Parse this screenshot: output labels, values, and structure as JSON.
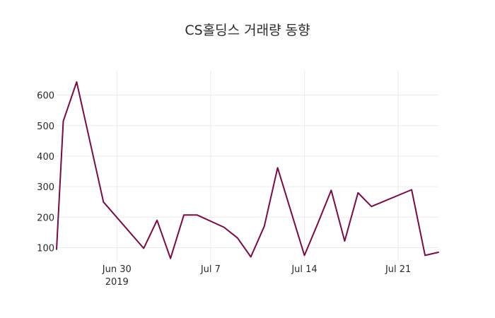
{
  "chart_data": {
    "type": "line",
    "title": "CS홀딩스 거래량 동향",
    "xlabel": "",
    "ylabel": "",
    "x_tick_labels": [
      {
        "date": "2019-06-30",
        "label": "Jun 30",
        "sublabel": "2019"
      },
      {
        "date": "2019-07-07",
        "label": "Jul 7",
        "sublabel": ""
      },
      {
        "date": "2019-07-14",
        "label": "Jul 14",
        "sublabel": ""
      },
      {
        "date": "2019-07-21",
        "label": "Jul 21",
        "sublabel": ""
      }
    ],
    "y_ticks": [
      100,
      200,
      300,
      400,
      500,
      600
    ],
    "xlim": [
      "2019-06-25T12:00:00",
      "2019-07-24"
    ],
    "ylim": [
      55,
      680
    ],
    "grid": true,
    "series": [
      {
        "color": "#7b0a45",
        "x": [
          "2019-06-25T12:00:00",
          "2019-06-26",
          "2019-06-27",
          "2019-06-29",
          "2019-07-02",
          "2019-07-03",
          "2019-07-04",
          "2019-07-05",
          "2019-07-06",
          "2019-07-08",
          "2019-07-09",
          "2019-07-10",
          "2019-07-11",
          "2019-07-12",
          "2019-07-14",
          "2019-07-15",
          "2019-07-16",
          "2019-07-17",
          "2019-07-18",
          "2019-07-19",
          "2019-07-22",
          "2019-07-23",
          "2019-07-24"
        ],
        "values": [
          95,
          515,
          643,
          250,
          98,
          190,
          65,
          207,
          207,
          167,
          132,
          70,
          170,
          362,
          75,
          180,
          288,
          122,
          280,
          235,
          290,
          75,
          85
        ]
      }
    ]
  }
}
